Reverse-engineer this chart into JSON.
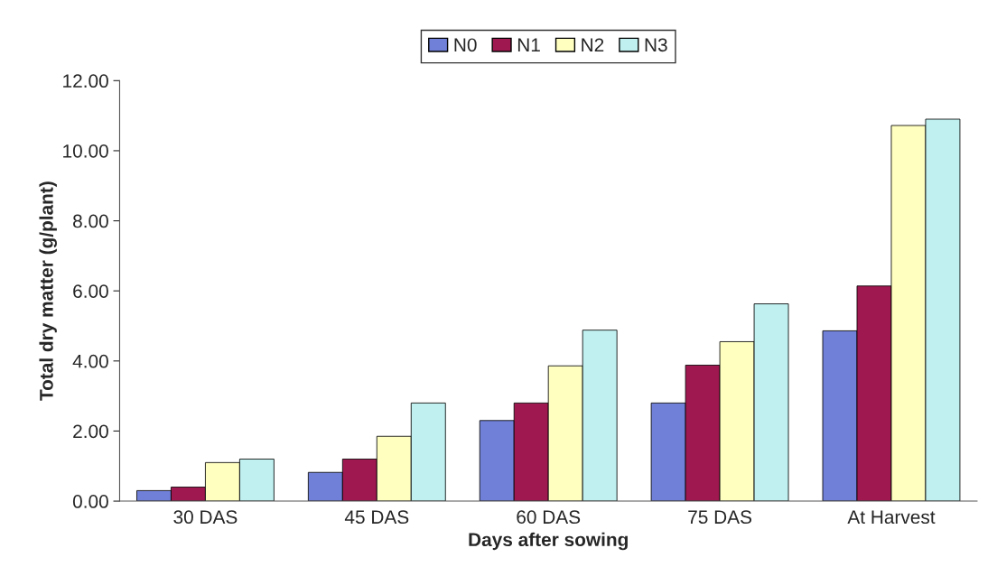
{
  "chart_data": {
    "type": "bar",
    "xlabel": "Days after sowing",
    "ylabel": "Total dry matter (g/plant)",
    "categories": [
      "30 DAS",
      "45 DAS",
      "60 DAS",
      "75 DAS",
      "At Harvest"
    ],
    "series": [
      {
        "name": "N0",
        "color": "#7080d8",
        "values": [
          0.3,
          0.82,
          2.3,
          2.8,
          4.86
        ]
      },
      {
        "name": "N1",
        "color": "#a01850",
        "values": [
          0.4,
          1.2,
          2.8,
          3.88,
          6.14
        ]
      },
      {
        "name": "N2",
        "color": "#ffffc0",
        "values": [
          1.1,
          1.85,
          3.86,
          4.55,
          10.72
        ]
      },
      {
        "name": "N3",
        "color": "#c0f0f0",
        "values": [
          1.2,
          2.8,
          4.88,
          5.63,
          10.9
        ]
      }
    ],
    "ylim": [
      0,
      12
    ],
    "yticks": [
      {
        "value": 0,
        "label": "0.00"
      },
      {
        "value": 2,
        "label": "2.00"
      },
      {
        "value": 4,
        "label": "4.00"
      },
      {
        "value": 6,
        "label": "6.00"
      },
      {
        "value": 8,
        "label": "8.00"
      },
      {
        "value": 10,
        "label": "10.00"
      },
      {
        "value": 12,
        "label": "12.00"
      }
    ],
    "grid": false,
    "legend": "top"
  }
}
